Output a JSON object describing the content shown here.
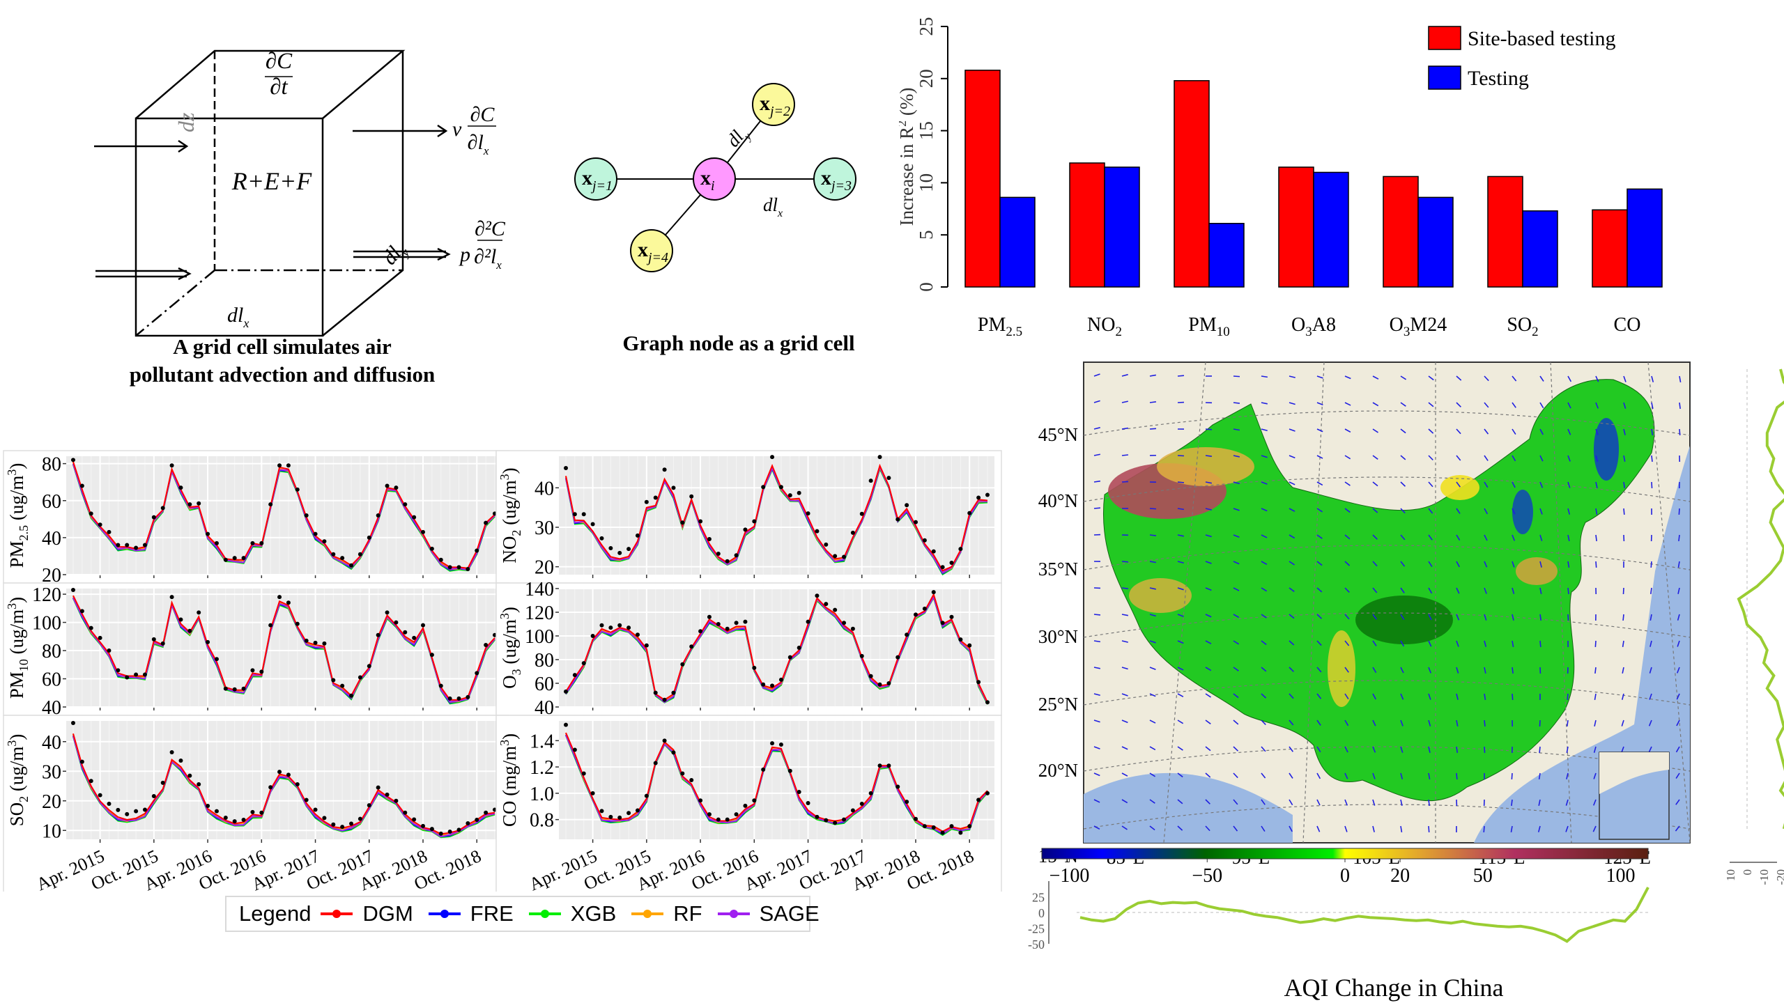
{
  "cube_diagram": {
    "caption_line1": "A grid cell simulates air",
    "caption_line2": "pollutant advection and diffusion",
    "top_numerator": "∂C",
    "top_denominator": "∂t",
    "center_label": "R+E+F",
    "edge_dz": "dz",
    "edge_dlx": "dl",
    "edge_dlx_sub": "x",
    "edge_dly": "dl",
    "edge_dly_sub": "y",
    "advection_coef": "v",
    "advection_num": "∂C",
    "advection_den": "∂l",
    "advection_den_sub": "x",
    "diffusion_coef": "p",
    "diffusion_num": "∂²C",
    "diffusion_den": "∂²l",
    "diffusion_den_sub": "x"
  },
  "graph_diagram": {
    "caption": "Graph node as a grid cell",
    "center_node": {
      "main": "x",
      "sub": "i",
      "color": "#ff99ff"
    },
    "neighbors": [
      {
        "main": "x",
        "sub": "j=1",
        "color": "#bff5dc"
      },
      {
        "main": "x",
        "sub": "j=2",
        "color": "#fbf99b"
      },
      {
        "main": "x",
        "sub": "j=3",
        "color": "#bff5dc"
      },
      {
        "main": "x",
        "sub": "j=4",
        "color": "#fbf99b"
      }
    ],
    "edge_dly": "dl",
    "edge_dly_sub": "y",
    "edge_dlx": "dl",
    "edge_dlx_sub": "x"
  },
  "chart_data": [
    {
      "id": "r2-increase",
      "type": "bar",
      "title": "",
      "xlabel": "",
      "ylabel": "Increase in R² (%)",
      "ylabel_parts": {
        "pre": "Increase in R",
        "sup": "2",
        "post": " (%)"
      },
      "ylim": [
        0,
        25
      ],
      "yticks": [
        0,
        5,
        10,
        15,
        20,
        25
      ],
      "grid": false,
      "legend_position": "top-right",
      "categories": [
        {
          "base": "PM",
          "sub": "2.5",
          "post": ""
        },
        {
          "base": "NO",
          "sub": "2",
          "post": ""
        },
        {
          "base": "PM",
          "sub": "10",
          "post": ""
        },
        {
          "base": "O",
          "sub": "3",
          "post": "A8"
        },
        {
          "base": "O",
          "sub": "3",
          "post": "M24"
        },
        {
          "base": "SO",
          "sub": "2",
          "post": ""
        },
        {
          "base": "CO",
          "sub": "",
          "post": ""
        }
      ],
      "series": [
        {
          "name": "Site-based testing",
          "color": "#ff0000",
          "values": [
            20.8,
            11.9,
            19.8,
            11.5,
            10.6,
            10.6,
            7.4
          ]
        },
        {
          "name": "Testing",
          "color": "#0000ff",
          "values": [
            8.6,
            11.5,
            6.1,
            11.0,
            8.6,
            7.3,
            9.4
          ]
        }
      ]
    },
    {
      "id": "pm25",
      "type": "line",
      "ylabel_parts": {
        "pre": "PM",
        "sub": "2.5",
        "post": " (ug/m",
        "sup": "3",
        "end": ")"
      },
      "ylim": [
        20,
        84
      ],
      "yticks": [
        20,
        40,
        60,
        80
      ],
      "observed": [
        82,
        68,
        53,
        47,
        43,
        36,
        36,
        34.5,
        36,
        51,
        56,
        79,
        67,
        58,
        58.5,
        42,
        37,
        28,
        29,
        29,
        37,
        37,
        58,
        79,
        79,
        66,
        52,
        42,
        38,
        31,
        29,
        25,
        31,
        40,
        52,
        68,
        67,
        58,
        51,
        43,
        34,
        28,
        24,
        24,
        23,
        33,
        48,
        53
      ],
      "dgm": [
        81,
        66,
        52,
        46,
        41,
        35,
        35,
        34,
        35,
        50,
        55,
        77,
        66,
        56.5,
        57,
        41,
        36,
        28.5,
        28,
        28,
        37,
        36,
        57,
        78,
        77,
        65,
        51,
        41,
        37,
        30,
        28,
        25,
        30,
        39,
        51,
        67,
        66,
        57,
        50,
        42,
        33,
        27,
        24,
        24,
        23.5,
        33,
        48,
        52.5
      ]
    },
    {
      "id": "no2",
      "type": "line",
      "ylabel_parts": {
        "pre": "NO",
        "sub": "2",
        "post": " (ug/m",
        "sup": "3",
        "end": ")"
      },
      "ylim": [
        18,
        48
      ],
      "yticks": [
        20,
        30,
        40
      ],
      "observed": [
        45,
        33.3,
        33.3,
        30.8,
        27.2,
        24.7,
        23.5,
        24.5,
        27.9,
        36.4,
        37.5,
        44.6,
        40,
        31.2,
        37.8,
        31.5,
        27,
        23.3,
        21.4,
        22.9,
        29.4,
        31.5,
        40.2,
        47.8,
        40.2,
        38.1,
        38.7,
        33.5,
        29,
        25.6,
        22.7,
        22.5,
        28.6,
        33.4,
        41.8,
        47.8,
        42.5,
        32,
        35.6,
        31.3,
        26.7,
        23.9,
        19.9,
        21,
        24.5,
        33.6,
        37.5,
        38.2
      ],
      "dgm": [
        43,
        31.8,
        31.7,
        29,
        25.5,
        22.5,
        22,
        22.6,
        26.5,
        35,
        35.5,
        42.2,
        38.3,
        30.5,
        37.1,
        30.5,
        25.8,
        22.5,
        21,
        22.5,
        28.8,
        30.2,
        40,
        45.6,
        40,
        37.1,
        37.3,
        32.5,
        27.5,
        24.2,
        22,
        22.3,
        27.5,
        32,
        38,
        45.6,
        40.5,
        32.1,
        34.7,
        30.4,
        25.8,
        23,
        19,
        20,
        24.2,
        33.5,
        37,
        36.8
      ]
    },
    {
      "id": "pm10",
      "type": "line",
      "ylabel_parts": {
        "pre": "PM",
        "sub": "10",
        "post": " (ug/m",
        "sup": "3",
        "end": ")"
      },
      "ylim": [
        40,
        124
      ],
      "yticks": [
        40,
        60,
        80,
        100,
        120
      ],
      "observed": [
        123,
        108,
        96,
        89,
        80,
        66,
        61,
        63,
        63,
        88,
        85,
        118,
        102,
        94,
        107,
        86,
        74,
        53,
        52.5,
        53,
        66,
        65,
        98,
        118,
        114,
        99,
        87,
        85.5,
        85,
        59,
        55,
        48,
        61,
        69,
        91,
        107,
        100,
        93,
        89,
        98,
        77,
        55,
        46,
        46,
        47,
        64,
        84,
        91
      ],
      "dgm": [
        119,
        106,
        94,
        86,
        78,
        64,
        62,
        62,
        62,
        87,
        84,
        114,
        99,
        93,
        104,
        84,
        72,
        54,
        52,
        52,
        64,
        63,
        95,
        115,
        112,
        97,
        86,
        84,
        83,
        57,
        54,
        48,
        60,
        68,
        90,
        105,
        98,
        90,
        86,
        96,
        75,
        54,
        45,
        45,
        47,
        64,
        82,
        89
      ]
    },
    {
      "id": "o3",
      "type": "line",
      "ylabel_parts": {
        "pre": "O",
        "sub": "3",
        "post": " (ug/m",
        "sup": "3",
        "end": ")"
      },
      "ylim": [
        40,
        140
      ],
      "yticks": [
        40,
        60,
        80,
        100,
        120,
        140
      ],
      "observed": [
        53,
        67,
        77,
        100,
        109,
        107,
        109,
        107,
        101,
        92,
        52,
        46,
        52,
        76,
        91,
        104,
        116,
        110,
        106,
        111,
        112,
        73,
        59,
        58,
        63,
        82,
        90,
        112,
        134,
        127,
        122,
        111,
        106,
        83,
        66,
        59,
        60,
        82,
        101,
        118,
        123,
        137,
        111,
        116,
        97,
        92,
        61,
        44
      ],
      "dgm": [
        53,
        65,
        76,
        97,
        106,
        103,
        107,
        105,
        99,
        89,
        51,
        46,
        51,
        76,
        90,
        102,
        114,
        109,
        104,
        108,
        108,
        72,
        58,
        56,
        61,
        81,
        88,
        110,
        132,
        124,
        119,
        109,
        103,
        82,
        65,
        58,
        59,
        81,
        100,
        117,
        121,
        135,
        110,
        114,
        96,
        90,
        60,
        44
      ]
    },
    {
      "id": "so2",
      "type": "line",
      "ylabel_parts": {
        "pre": "SO",
        "sub": "2",
        "post": " (ug/m",
        "sup": "3",
        "end": ")"
      },
      "ylim": [
        7,
        47
      ],
      "yticks": [
        10,
        20,
        30,
        40
      ],
      "observed": [
        46.3,
        33.2,
        26.7,
        21.9,
        19,
        16.9,
        15.5,
        16.5,
        17,
        21.6,
        26.1,
        36.4,
        33.6,
        28.5,
        25.6,
        18.3,
        16.5,
        14.3,
        13.1,
        13.6,
        16.2,
        16,
        24.6,
        29.8,
        28.8,
        25.6,
        20.3,
        17,
        14.2,
        12,
        11.2,
        12.3,
        13.9,
        18.5,
        24.5,
        22.1,
        20,
        16,
        13.7,
        11.5,
        10.5,
        8.9,
        9.6,
        10.2,
        12.4,
        13.6,
        16,
        17
      ],
      "dgm": [
        42.7,
        32,
        25,
        19.9,
        16.9,
        14.5,
        13.6,
        14.1,
        15.7,
        20.2,
        24,
        33.9,
        31.5,
        27,
        24.3,
        17.3,
        15.2,
        13.4,
        12.3,
        12.8,
        15.4,
        15,
        23.8,
        29,
        28.3,
        25,
        19.2,
        15.5,
        13,
        11.2,
        10.8,
        11.5,
        12.9,
        18,
        23.7,
        21.5,
        19.5,
        15.5,
        12.9,
        11,
        10.3,
        8.8,
        9.2,
        10,
        12,
        13.6,
        15.6,
        16
      ]
    },
    {
      "id": "co",
      "type": "line",
      "ylabel_parts": {
        "pre": "CO",
        "sub": "",
        "post": " (mg/m",
        "sup": "3",
        "end": ")"
      },
      "ylim": [
        0.65,
        1.55
      ],
      "yticks": [
        0.8,
        1.0,
        1.2,
        1.4
      ],
      "ytick_labels": [
        "0.8",
        "1.0",
        "1.2",
        "1.4"
      ],
      "observed": [
        1.52,
        1.33,
        1.15,
        1.0,
        0.865,
        0.82,
        0.815,
        0.85,
        0.87,
        0.98,
        1.23,
        1.4,
        1.31,
        1.15,
        1.1,
        0.945,
        0.84,
        0.8,
        0.8,
        0.84,
        0.905,
        0.945,
        1.18,
        1.38,
        1.37,
        1.17,
        1.01,
        0.925,
        0.82,
        0.795,
        0.775,
        0.8,
        0.87,
        0.92,
        1.0,
        1.21,
        1.21,
        1.05,
        0.935,
        0.805,
        0.75,
        0.74,
        0.7,
        0.75,
        0.7,
        0.75,
        0.95,
        1.0
      ],
      "dgm": [
        1.46,
        1.3,
        1.12,
        0.96,
        0.815,
        0.805,
        0.8,
        0.81,
        0.86,
        0.96,
        1.24,
        1.39,
        1.33,
        1.13,
        1.07,
        0.93,
        0.82,
        0.79,
        0.79,
        0.81,
        0.88,
        0.92,
        1.18,
        1.35,
        1.34,
        1.16,
        0.97,
        0.87,
        0.82,
        0.8,
        0.79,
        0.8,
        0.85,
        0.9,
        0.98,
        1.21,
        1.21,
        1.04,
        0.92,
        0.8,
        0.755,
        0.75,
        0.71,
        0.745,
        0.73,
        0.75,
        0.95,
        1.02
      ]
    }
  ],
  "timeseries_x_labels": [
    "Apr. 2015",
    "Oct. 2015",
    "Apr. 2016",
    "Oct. 2016",
    "Apr. 2017",
    "Oct. 2017",
    "Apr. 2018",
    "Oct. 2018"
  ],
  "timeseries_legend": {
    "title": "Legend",
    "items": [
      {
        "name": "DGM",
        "color": "#ff0000"
      },
      {
        "name": "FRE",
        "color": "#0000ff"
      },
      {
        "name": "XGB",
        "color": "#00ee00"
      },
      {
        "name": "RF",
        "color": "#ffa500"
      },
      {
        "name": "SAGE",
        "color": "#a020f0"
      }
    ]
  },
  "map": {
    "title": "AQI Change in China",
    "lat_labels": [
      "45°N",
      "40°N",
      "35°N",
      "30°N",
      "25°N",
      "20°N",
      "15°N"
    ],
    "lon_labels": [
      "85°E",
      "95°E",
      "105°E",
      "115°E",
      "125°E"
    ],
    "colorbar_ticks": [
      "−100",
      "−50",
      "0",
      "20",
      "50",
      "100"
    ],
    "colorbar_values": [
      -100,
      -50,
      0,
      20,
      50,
      100
    ],
    "colorbar_range": [
      -110,
      110
    ],
    "land_color": "#efebdc",
    "water_color": "#9bb8e3",
    "bottom_profile": {
      "yticks": [
        "25",
        "0",
        "-25",
        "-50"
      ]
    },
    "side_profile": {
      "xticks": [
        "10",
        "0",
        "-10",
        "-20"
      ]
    }
  }
}
